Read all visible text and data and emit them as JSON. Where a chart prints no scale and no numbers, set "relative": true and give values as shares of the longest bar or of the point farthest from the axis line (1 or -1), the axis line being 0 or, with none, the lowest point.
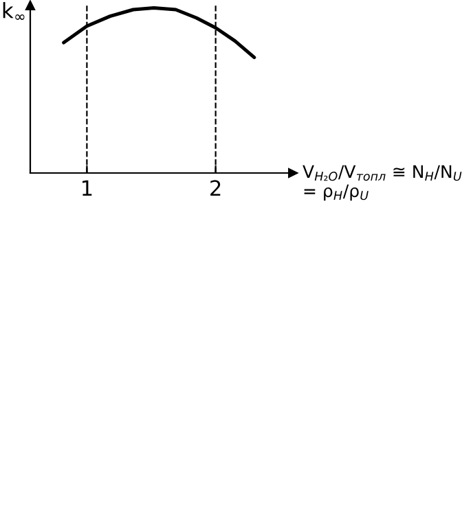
{
  "chart_data": {
    "type": "line",
    "relative": true,
    "xlabel": "V$_{H₂O}$/V$_{топл}$ ≅ N$_{H}$/N$_{U}$ = ρ$_{H}$/ρ$_{U}$",
    "ylabel": "k$_{∞}$",
    "x": [
      0.82,
      1.0,
      1.18,
      1.36,
      1.52,
      1.69,
      1.85,
      2.0,
      2.15,
      2.3
    ],
    "series": [
      {
        "color": "#000000",
        "values": [
          0.79,
          0.89,
          0.95,
          0.99,
          1.0,
          0.99,
          0.94,
          0.88,
          0.8,
          0.7
        ]
      }
    ],
    "xlim": [
      0.56,
      2.6
    ],
    "xticks": [
      1,
      2
    ],
    "ref_lines": [
      {
        "axis": "x",
        "value": 1,
        "line_style": "dashed",
        "color": "#000000"
      },
      {
        "axis": "x",
        "value": 2,
        "line_style": "dashed",
        "color": "#000000"
      }
    ],
    "tick_labels": "x",
    "grid": false,
    "legend": false,
    "marker": "none",
    "line_style": "solid"
  }
}
